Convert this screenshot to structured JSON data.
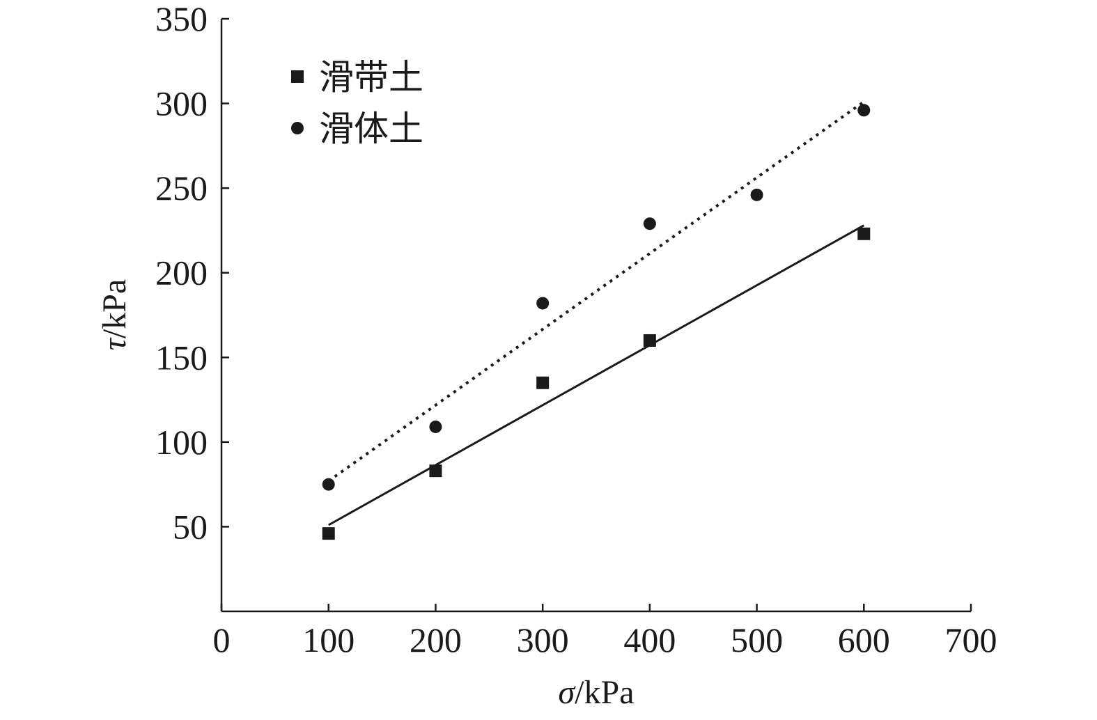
{
  "chart_data": {
    "type": "scatter",
    "xlabel": "σ/kPa",
    "ylabel": "τ/kPa",
    "xlim": [
      0,
      700
    ],
    "ylim": [
      0,
      350
    ],
    "xticks": [
      0,
      100,
      200,
      300,
      400,
      500,
      600,
      700
    ],
    "yticks": [
      50,
      100,
      150,
      200,
      250,
      300,
      350
    ],
    "grid": false,
    "legend_position": "top-left",
    "series": [
      {
        "name": "滑带土",
        "marker": "square",
        "line_style": "solid",
        "color": "#1a1a1a",
        "x": [
          100,
          200,
          300,
          400,
          600
        ],
        "y": [
          46,
          83,
          135,
          160,
          223
        ],
        "fit": [
          [
            100,
            51
          ],
          [
            600,
            228
          ]
        ]
      },
      {
        "name": "滑体土",
        "marker": "circle",
        "line_style": "dotted",
        "color": "#1a1a1a",
        "x": [
          100,
          200,
          300,
          400,
          500,
          600
        ],
        "y": [
          75,
          109,
          182,
          229,
          246,
          296
        ],
        "fit": [
          [
            100,
            77
          ],
          [
            600,
            301
          ]
        ]
      }
    ]
  }
}
